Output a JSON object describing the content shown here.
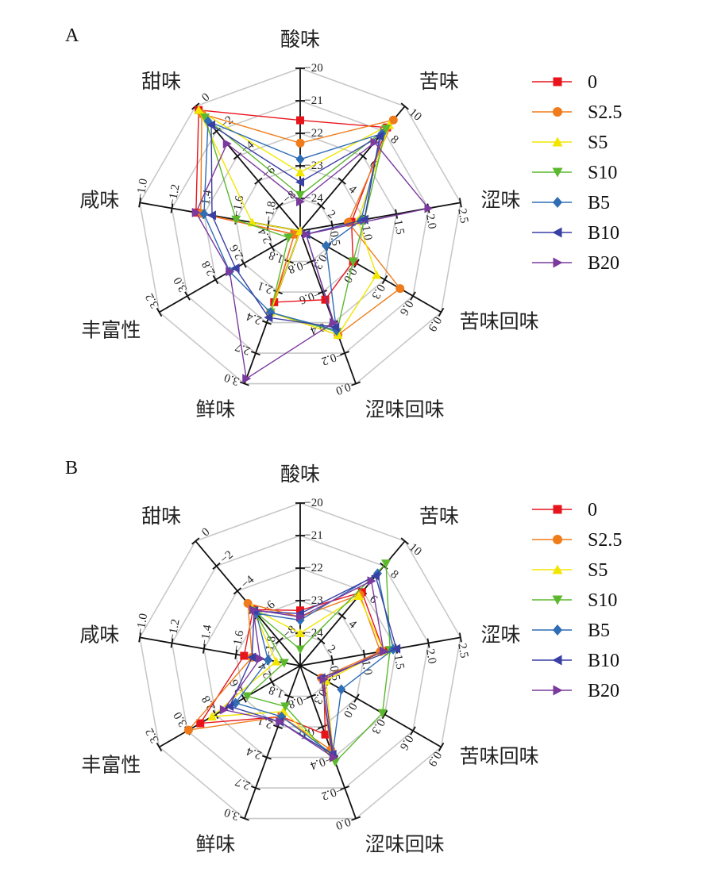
{
  "chart_data": [
    {
      "type": "radar",
      "panel": "A",
      "axes": [
        {
          "label": "酸味",
          "range": [
            -25,
            -20
          ],
          "ticks": [
            "-20",
            "-21",
            "-22",
            "-23",
            "-24"
          ]
        },
        {
          "label": "苦味",
          "range": [
            0,
            10
          ],
          "ticks": [
            "10",
            "8",
            "6",
            "4",
            "2"
          ]
        },
        {
          "label": "涩味",
          "range": [
            0,
            2.5
          ],
          "ticks": [
            "2.5",
            "2.0",
            "1.5",
            "1.0",
            "0.5"
          ]
        },
        {
          "label": "苦味回味",
          "range": [
            -0.3,
            0.9
          ],
          "ticks": [
            "0.9",
            "0.6",
            "0.3",
            "0.0",
            "-0.3"
          ]
        },
        {
          "label": "涩味回味",
          "range": [
            -1.0,
            0.0
          ],
          "ticks": [
            "0.0",
            "-0.2",
            "-0.4",
            "-0.6",
            "-0.8"
          ]
        },
        {
          "label": "鲜味",
          "range": [
            1.5,
            3.0
          ],
          "ticks": [
            "3.0",
            "2.7",
            "2.4",
            "2.1",
            "1.8"
          ]
        },
        {
          "label": "丰富性",
          "range": [
            2.0,
            3.2
          ],
          "ticks": [
            "3.2",
            "3.0",
            "2.8",
            "2.6",
            "2.4"
          ]
        },
        {
          "label": "咸味",
          "range": [
            -2.0,
            -1.0
          ],
          "ticks": [
            "-1.0",
            "-1.2",
            "-1.4",
            "-1.6",
            "-1.8"
          ]
        },
        {
          "label": "甜味",
          "range": [
            -10,
            0
          ],
          "ticks": [
            "0",
            "-2",
            "-4",
            "-6",
            "-8"
          ]
        }
      ],
      "series": [
        {
          "name": "0",
          "color": "#e8141b",
          "marker": "square",
          "values": [
            -21.6,
            8.3,
            0.8,
            0.15,
            -0.55,
            2.2,
            2.05,
            -1.35,
            -0.3
          ]
        },
        {
          "name": "S2.5",
          "color": "#f07b1a",
          "marker": "circle",
          "values": [
            -22.3,
            8.9,
            0.75,
            0.55,
            -0.32,
            2.3,
            2.05,
            -1.38,
            -0.6
          ]
        },
        {
          "name": "S5",
          "color": "#f2e600",
          "marker": "triangle-up",
          "values": [
            -23.2,
            8.5,
            0.9,
            0.35,
            -0.32,
            2.3,
            2.0,
            -1.7,
            -0.3
          ]
        },
        {
          "name": "S10",
          "color": "#5cb82e",
          "marker": "triangle-down",
          "values": [
            -23.9,
            8.2,
            1.0,
            0.15,
            -0.34,
            2.3,
            2.1,
            -1.6,
            -0.9
          ]
        },
        {
          "name": "B5",
          "color": "#2f6db5",
          "marker": "diamond",
          "values": [
            -22.8,
            7.8,
            0.95,
            -0.08,
            -0.35,
            2.3,
            2.6,
            -1.4,
            -1.2
          ]
        },
        {
          "name": "B10",
          "color": "#3a3fa3",
          "marker": "triangle-left",
          "values": [
            -23.5,
            7.6,
            1.0,
            -0.25,
            -0.37,
            2.35,
            2.55,
            -1.45,
            -1.5
          ]
        },
        {
          "name": "B20",
          "color": "#7a3a9e",
          "marker": "triangle-right",
          "values": [
            -24.1,
            7.1,
            2.0,
            -0.25,
            -0.4,
            2.95,
            2.6,
            -1.35,
            -3.0
          ]
        }
      ]
    },
    {
      "type": "radar",
      "panel": "B",
      "axes": [
        {
          "label": "酸味",
          "range": [
            -25,
            -20
          ],
          "ticks": [
            "-20",
            "-21",
            "-22",
            "-23",
            "-24"
          ]
        },
        {
          "label": "苦味",
          "range": [
            0,
            10
          ],
          "ticks": [
            "10",
            "8",
            "6",
            "4",
            "2"
          ]
        },
        {
          "label": "涩味",
          "range": [
            0,
            2.5
          ],
          "ticks": [
            "2.5",
            "2.0",
            "1.5",
            "1.0",
            "0.5"
          ]
        },
        {
          "label": "苦味回味",
          "range": [
            -0.3,
            0.9
          ],
          "ticks": [
            "0.9",
            "0.6",
            "0.3",
            "0.0",
            "-0.3"
          ]
        },
        {
          "label": "涩味回味",
          "range": [
            -1.0,
            0.0
          ],
          "ticks": [
            "0.0",
            "-0.2",
            "-0.4",
            "-0.6",
            "-0.8"
          ]
        },
        {
          "label": "鲜味",
          "range": [
            1.5,
            3.0
          ],
          "ticks": [
            "3.0",
            "2.7",
            "2.4",
            "2.1",
            "1.8"
          ]
        },
        {
          "label": "丰富性",
          "range": [
            2.0,
            3.2
          ],
          "ticks": [
            "3.2",
            "3.0",
            "2.8",
            "2.6",
            "2.4"
          ]
        },
        {
          "label": "咸味",
          "range": [
            -2.0,
            -1.0
          ],
          "ticks": [
            "-1.0",
            "-1.2",
            "-1.4",
            "-1.6",
            "-1.8"
          ]
        },
        {
          "label": "甜味",
          "range": [
            -10,
            0
          ],
          "ticks": [
            "0",
            "-2",
            "-4",
            "-6",
            "-8"
          ]
        }
      ],
      "series": [
        {
          "name": "0",
          "color": "#e8141b",
          "marker": "square",
          "values": [
            -23.3,
            5.9,
            1.3,
            -0.1,
            -0.55,
            2.0,
            2.85,
            -1.65,
            -5.5
          ]
        },
        {
          "name": "S2.5",
          "color": "#f07b1a",
          "marker": "circle",
          "values": [
            -23.5,
            5.7,
            1.25,
            -0.12,
            -0.45,
            2.0,
            2.95,
            -1.7,
            -5.0
          ]
        },
        {
          "name": "S5",
          "color": "#f2e600",
          "marker": "triangle-up",
          "values": [
            -24.0,
            5.6,
            1.3,
            -0.08,
            -0.4,
            1.95,
            2.75,
            -1.85,
            -5.4
          ]
        },
        {
          "name": "S10",
          "color": "#5cb82e",
          "marker": "triangle-down",
          "values": [
            -24.5,
            8.2,
            1.4,
            0.4,
            -0.37,
            1.9,
            2.45,
            -1.9,
            -5.6
          ]
        },
        {
          "name": "B5",
          "color": "#2f6db5",
          "marker": "diamond",
          "values": [
            -23.6,
            7.4,
            1.45,
            0.05,
            -0.42,
            2.0,
            2.55,
            -1.8,
            -5.8
          ]
        },
        {
          "name": "B10",
          "color": "#3a3fa3",
          "marker": "triangle-left",
          "values": [
            -23.4,
            7.2,
            1.5,
            -0.12,
            -0.42,
            2.05,
            2.6,
            -1.7,
            -5.6
          ]
        },
        {
          "name": "B20",
          "color": "#7a3a9e",
          "marker": "triangle-right",
          "values": [
            -23.5,
            6.8,
            1.3,
            -0.1,
            -0.4,
            2.05,
            2.65,
            -1.75,
            -5.5
          ]
        }
      ]
    }
  ]
}
